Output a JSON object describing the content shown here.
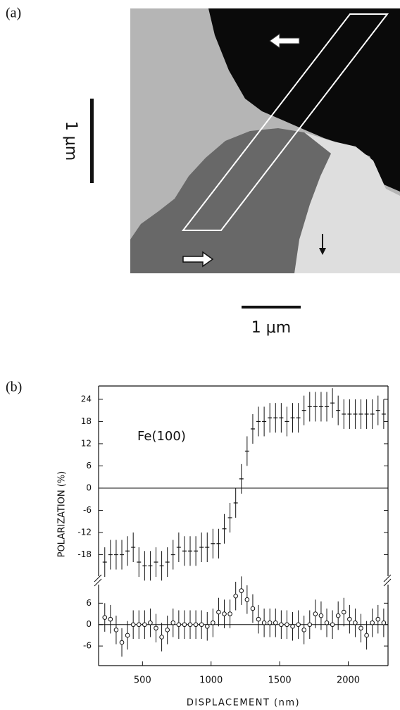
{
  "panel_a": {
    "label": "(a)",
    "scale_bar_vertical": "1 μm",
    "scale_bar_horizontal": "1 μm"
  },
  "chart_data": [
    {
      "type": "errorbar",
      "panel_label": "(b)",
      "annotation": "Fe(100)",
      "ylabel": "POLARIZATION (%)",
      "marker": "plus",
      "zero_line": true,
      "xlim": [
        180,
        2290
      ],
      "ylim": [
        -23.8,
        27.6
      ],
      "yticks": [
        -18,
        -12,
        -6,
        0,
        6,
        12,
        18,
        24
      ],
      "x": [
        225,
        266.5,
        308,
        349.5,
        391,
        432.5,
        474,
        515.5,
        557,
        598.5,
        640,
        681.5,
        723,
        764.5,
        806,
        847.5,
        889,
        930.5,
        972,
        1013.5,
        1055,
        1096.5,
        1138,
        1179.5,
        1221,
        1262.5,
        1304,
        1345.5,
        1387,
        1428.5,
        1470,
        1511.5,
        1553,
        1594.5,
        1636,
        1677.5,
        1719,
        1760.5,
        1802,
        1843.5,
        1885,
        1926.5,
        1968,
        2009.5,
        2051,
        2092.5,
        2134,
        2175.5,
        2217,
        2258.5
      ],
      "series": [
        {
          "color": "#111111",
          "yerr": 4,
          "values": [
            -20,
            -18,
            -18,
            -18,
            -17,
            -16,
            -20,
            -21,
            -21,
            -20,
            -21,
            -20,
            -18,
            -16,
            -17,
            -17,
            -17,
            -16,
            -16,
            -15,
            -15,
            -11,
            -8,
            -4,
            2.5,
            10,
            16,
            18,
            18,
            19,
            19,
            19,
            18,
            19,
            19,
            21,
            22,
            22,
            22,
            22,
            23,
            21,
            20,
            20,
            20,
            20,
            20,
            20,
            21,
            20
          ]
        }
      ]
    },
    {
      "type": "errorbar",
      "xlabel": "DISPLACEMENT (nm)",
      "marker": "circle",
      "zero_line": true,
      "xlim": [
        180,
        2290
      ],
      "xticks": [
        500,
        1000,
        1500,
        2000
      ],
      "ylim": [
        -11.5,
        11.2
      ],
      "yticks": [
        -6,
        0,
        6
      ],
      "x": [
        225,
        266.5,
        308,
        349.5,
        391,
        432.5,
        474,
        515.5,
        557,
        598.5,
        640,
        681.5,
        723,
        764.5,
        806,
        847.5,
        889,
        930.5,
        972,
        1013.5,
        1055,
        1096.5,
        1138,
        1179.5,
        1221,
        1262.5,
        1304,
        1345.5,
        1387,
        1428.5,
        1470,
        1511.5,
        1553,
        1594.5,
        1636,
        1677.5,
        1719,
        1760.5,
        1802,
        1843.5,
        1885,
        1926.5,
        1968,
        2009.5,
        2051,
        2092.5,
        2134,
        2175.5,
        2217,
        2258.5
      ],
      "series": [
        {
          "color": "#111111",
          "yerr": 4,
          "values": [
            2,
            1.5,
            -1.5,
            -5,
            -3,
            0,
            0,
            0,
            0.5,
            -1,
            -3.5,
            -1.5,
            0.5,
            0,
            0,
            0,
            0,
            0,
            -0.5,
            0.5,
            3.5,
            3,
            3,
            8,
            9.5,
            7,
            4.5,
            1.5,
            0.5,
            0.5,
            0.5,
            0,
            0,
            -0.5,
            0,
            -1.5,
            0,
            3,
            2.5,
            0.5,
            0,
            2.5,
            3.5,
            1.5,
            0.5,
            -1,
            -3,
            0.5,
            1.5,
            0.5
          ]
        }
      ]
    }
  ]
}
